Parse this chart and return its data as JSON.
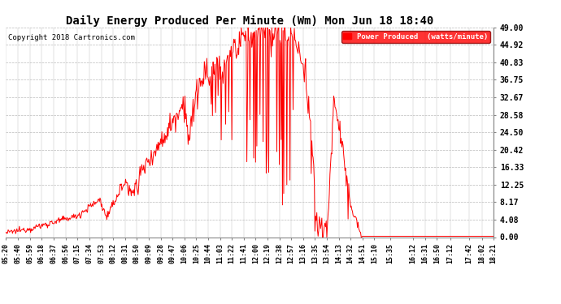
{
  "title": "Daily Energy Produced Per Minute (Wm) Mon Jun 18 18:40",
  "copyright": "Copyright 2018 Cartronics.com",
  "legend_label": "Power Produced  (watts/minute)",
  "line_color": "#ff0000",
  "background_color": "#ffffff",
  "plot_bg_color": "#ffffff",
  "grid_color": "#bbbbbb",
  "yticks": [
    0.0,
    4.08,
    8.17,
    12.25,
    16.33,
    20.42,
    24.5,
    28.58,
    32.67,
    36.75,
    40.83,
    44.92,
    49.0
  ],
  "ylim": [
    0,
    49.0
  ],
  "xtick_labels": [
    "05:20",
    "05:40",
    "05:59",
    "06:18",
    "06:37",
    "06:56",
    "07:15",
    "07:34",
    "07:53",
    "08:12",
    "08:31",
    "08:50",
    "09:09",
    "09:28",
    "09:47",
    "10:06",
    "10:25",
    "10:44",
    "11:03",
    "11:22",
    "11:41",
    "12:00",
    "12:19",
    "12:38",
    "12:57",
    "13:16",
    "13:35",
    "13:54",
    "14:13",
    "14:32",
    "14:51",
    "15:10",
    "15:35",
    "16:12",
    "16:31",
    "16:50",
    "17:12",
    "17:42",
    "18:02",
    "18:21"
  ],
  "figsize": [
    6.9,
    3.75
  ],
  "dpi": 100
}
